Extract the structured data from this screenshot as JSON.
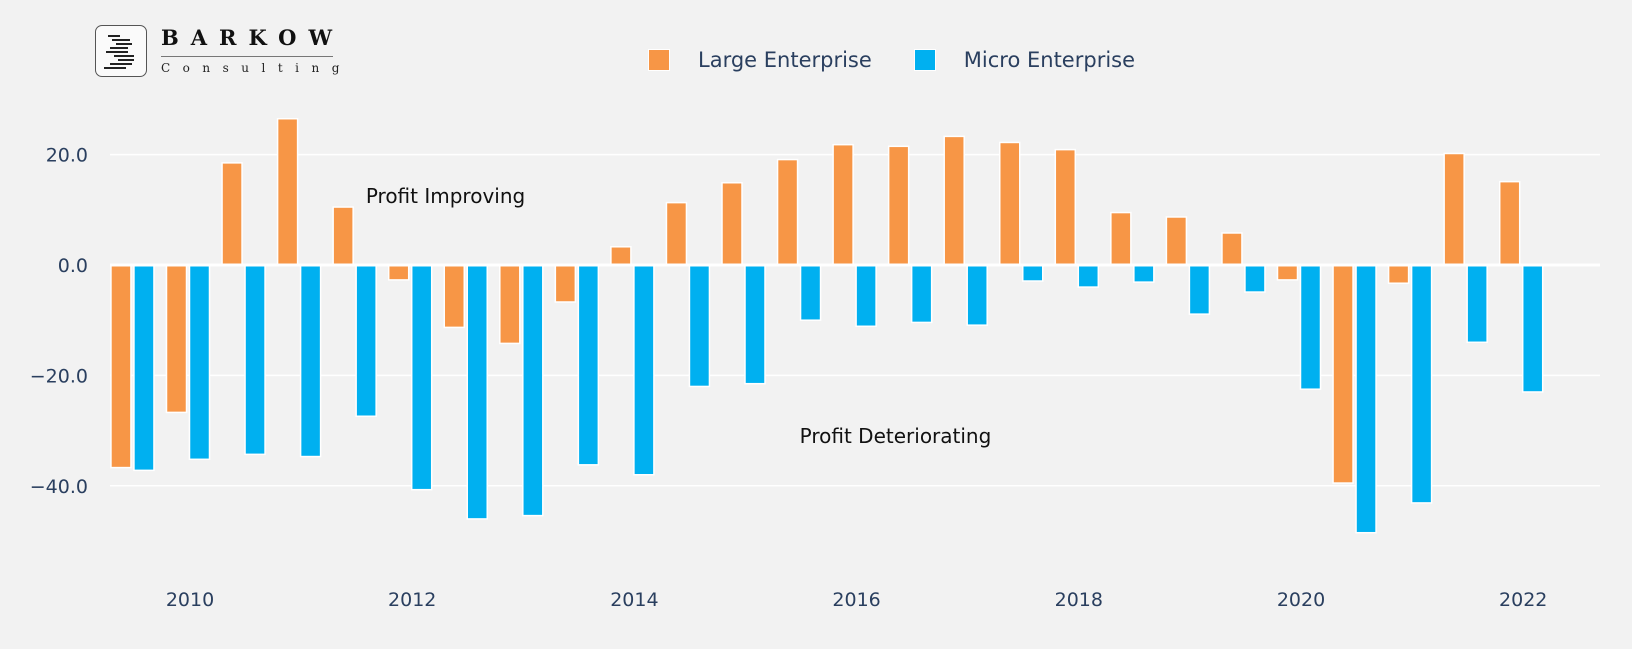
{
  "logo": {
    "title": "BARKOW",
    "subtitle": "Consulting"
  },
  "legend": [
    {
      "label": "Large Enterprise",
      "color": "#f79646"
    },
    {
      "label": "Micro Enterprise",
      "color": "#00b0f0"
    }
  ],
  "chart_data": {
    "type": "bar",
    "title": "",
    "xlabel": "",
    "ylabel": "",
    "ylim": [
      -52,
      31
    ],
    "xlim": [
      2009.25,
      2022.25
    ],
    "grid": true,
    "legend_position": "top-center",
    "yticks": [
      20.0,
      0.0,
      -20.0,
      -40.0
    ],
    "ytick_labels": [
      "20.0",
      "0.0",
      "−20.0",
      "−40.0"
    ],
    "xticks": [
      2010,
      2012,
      2014,
      2016,
      2018,
      2020,
      2022
    ],
    "xtick_labels": [
      "2010",
      "2012",
      "2014",
      "2016",
      "2018",
      "2020",
      "2022"
    ],
    "x": [
      2009.5,
      2010.0,
      2010.5,
      2011.0,
      2011.5,
      2012.0,
      2012.5,
      2013.0,
      2013.5,
      2014.0,
      2014.5,
      2015.0,
      2015.5,
      2016.0,
      2016.5,
      2017.0,
      2017.5,
      2018.0,
      2018.5,
      2019.0,
      2019.5,
      2020.0,
      2020.5,
      2021.0,
      2021.5,
      2022.0
    ],
    "series": [
      {
        "name": "Large Enterprise",
        "color": "#f79646",
        "values": [
          -36.7,
          -26.7,
          18.5,
          26.5,
          10.5,
          -2.7,
          -11.3,
          -14.2,
          -6.7,
          3.3,
          11.3,
          14.9,
          19.1,
          21.8,
          21.5,
          23.3,
          22.2,
          20.9,
          9.5,
          8.7,
          5.8,
          -2.7,
          -39.5,
          -3.3,
          20.2,
          15.1
        ]
      },
      {
        "name": "Micro Enterprise",
        "color": "#00b0f0",
        "values": [
          -37.2,
          -35.2,
          -34.3,
          -34.7,
          -27.4,
          -40.7,
          -46.0,
          -45.4,
          -36.2,
          -38.0,
          -22.0,
          -21.5,
          -10.0,
          -11.1,
          -10.4,
          -10.9,
          -2.9,
          -4.0,
          -3.1,
          -8.9,
          -4.9,
          -22.5,
          -48.5,
          -43.1,
          -14.0,
          -23.0
        ]
      }
    ],
    "annotations": [
      {
        "text": "Profit Improving",
        "x": 2012.3,
        "y": 12.5
      },
      {
        "text": "Profit Deteriorating",
        "x": 2016.35,
        "y": -31.0
      }
    ]
  }
}
